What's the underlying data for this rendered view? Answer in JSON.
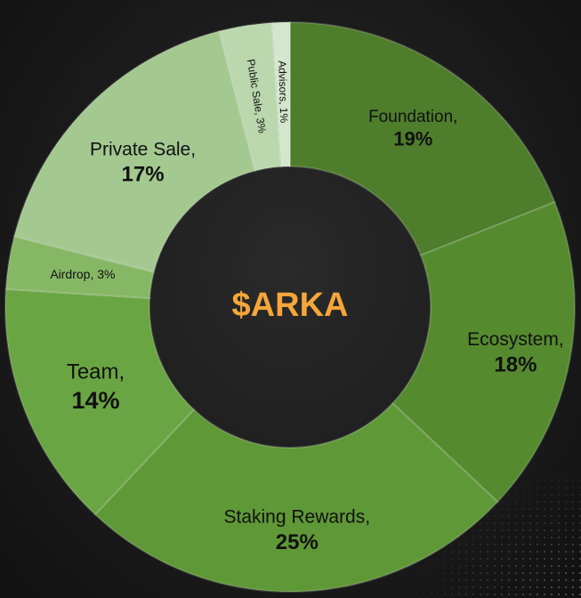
{
  "chart_data": {
    "type": "pie",
    "center_label": "$ARKA",
    "slices": [
      {
        "label": "Foundation",
        "value": 19,
        "value_label": "19%",
        "color": "#4e7d2b"
      },
      {
        "label": "Ecosystem",
        "value": 18,
        "value_label": "18%",
        "color": "#558a2f"
      },
      {
        "label": "Staking Rewards",
        "value": 25,
        "value_label": "25%",
        "color": "#5f9837"
      },
      {
        "label": "Team",
        "value": 14,
        "value_label": "14%",
        "color": "#6aa543"
      },
      {
        "label": "Airdrop",
        "value": 3,
        "value_label": "3%",
        "color": "#86b764"
      },
      {
        "label": "Private Sale",
        "value": 17,
        "value_label": "17%",
        "color": "#a3c890"
      },
      {
        "label": "Public Sale",
        "value": 3,
        "value_label": "3%",
        "color": "#bad7ae"
      },
      {
        "label": "Advisors",
        "value": 1,
        "value_label": "1%",
        "color": "#d4e6cc"
      }
    ]
  }
}
